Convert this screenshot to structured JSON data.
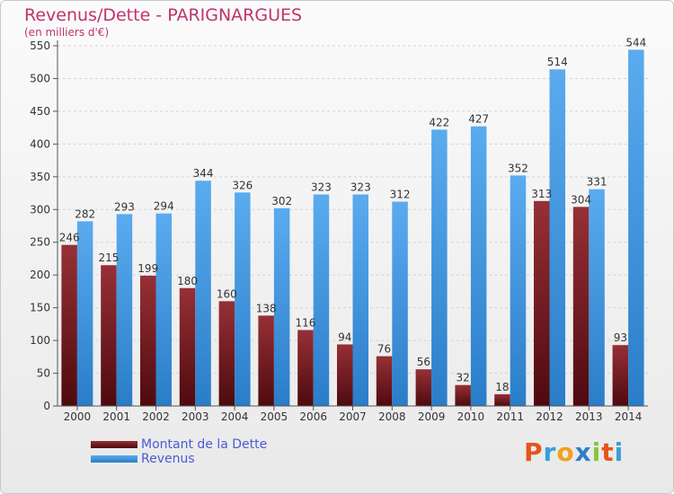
{
  "title": "Revenus/Dette - PARIGNARGUES",
  "subtitle": "(en milliers d'€)",
  "legend": {
    "debt_label": "Montant de la Dette",
    "revenue_label": "Revenus"
  },
  "logo": {
    "text": "Proxiti",
    "colors": [
      "#e5541c",
      "#37a0d8",
      "#f0a21c",
      "#2e7fc6",
      "#8bc43f",
      "#e5541c",
      "#37a0d8"
    ]
  },
  "chart_data": {
    "type": "bar",
    "title": "Revenus/Dette - PARIGNARGUES",
    "subtitle": "(en milliers d'€)",
    "categories": [
      "2000",
      "2001",
      "2002",
      "2003",
      "2004",
      "2005",
      "2006",
      "2007",
      "2008",
      "2009",
      "2010",
      "2011",
      "2012",
      "2013",
      "2014"
    ],
    "series": [
      {
        "name": "Montant de la Dette",
        "color": "#7b1f24",
        "values": [
          246,
          215,
          199,
          180,
          160,
          138,
          116,
          94,
          76,
          56,
          32,
          18,
          313,
          304,
          93
        ]
      },
      {
        "name": "Revenus",
        "color": "#3b93e0",
        "values": [
          282,
          293,
          294,
          344,
          326,
          302,
          323,
          323,
          312,
          422,
          427,
          352,
          514,
          331,
          544
        ]
      }
    ],
    "ylim": [
      0,
      550
    ],
    "yticks": [
      0,
      50,
      100,
      150,
      200,
      250,
      300,
      350,
      400,
      450,
      500,
      550
    ],
    "grid": true,
    "legend_position": "bottom-left"
  }
}
